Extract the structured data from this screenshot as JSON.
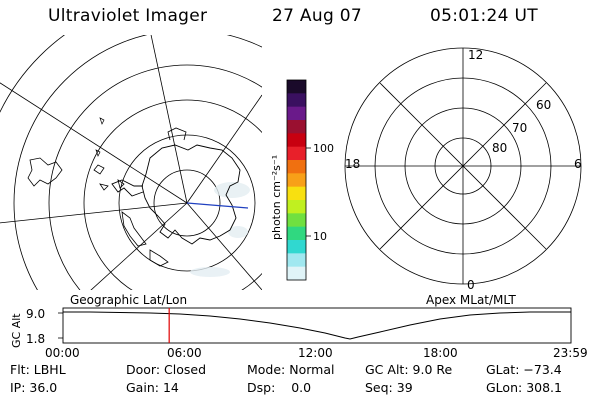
{
  "header": {
    "title": "Ultraviolet Imager",
    "date": "27 Aug 07",
    "time": "05:01:24 UT"
  },
  "colorbar": {
    "unit_label": "photon cm⁻²s⁻¹",
    "tick_labels": [
      "100",
      "10"
    ],
    "colors_top_to_bottom": [
      "#1a0a2a",
      "#3a1060",
      "#6a1a8a",
      "#9a1030",
      "#c80010",
      "#e8202a",
      "#f07010",
      "#f8a018",
      "#f8e010",
      "#c0f020",
      "#70e040",
      "#30d880",
      "#30d8d0",
      "#a0e8f0",
      "#e0f4f8"
    ]
  },
  "left_map": {
    "label": "Geographic Lat/Lon"
  },
  "right_map": {
    "label": "Apex MLat/MLT",
    "mlt_labels": [
      "12",
      "18",
      "6",
      "0"
    ],
    "lat_labels": [
      "60",
      "70",
      "80"
    ]
  },
  "timeline": {
    "axis_label": "GC Alt",
    "y_labels": [
      "9.0",
      "1.8"
    ],
    "x_labels": [
      "00:00",
      "06:00",
      "12:00",
      "18:00",
      "23:59"
    ],
    "current_time_fraction": 0.209,
    "marker_color": "#e00000"
  },
  "status": {
    "rows": [
      [
        {
          "key": "Flt:",
          "value": "LBHL"
        },
        {
          "key": "Door:",
          "value": "Closed"
        },
        {
          "key": "Mode:",
          "value": "Normal"
        },
        {
          "key": "GC Alt:",
          "value": "9.0 Re"
        },
        {
          "key": "GLat:",
          "value": "−73.4"
        }
      ],
      [
        {
          "key": "IP:",
          "value": "36.0"
        },
        {
          "key": "Gain:",
          "value": "14"
        },
        {
          "key": "Dsp:",
          "value": "0.0"
        },
        {
          "key": "Seq:",
          "value": "39"
        },
        {
          "key": "GLon:",
          "value": "308.1"
        }
      ]
    ]
  }
}
